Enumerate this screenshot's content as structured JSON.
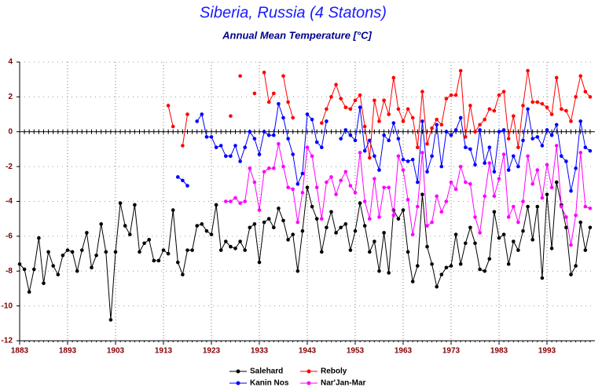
{
  "chart_data": {
    "type": "line",
    "title": "Siberia, Russia (4 Statons)",
    "subtitle": "Annual Mean Temperature [°C]",
    "x": [
      1883,
      1884,
      1885,
      1886,
      1887,
      1888,
      1889,
      1890,
      1891,
      1892,
      1893,
      1894,
      1895,
      1896,
      1897,
      1898,
      1899,
      1900,
      1901,
      1902,
      1903,
      1904,
      1905,
      1906,
      1907,
      1908,
      1909,
      1910,
      1911,
      1912,
      1913,
      1914,
      1915,
      1916,
      1917,
      1918,
      1919,
      1920,
      1921,
      1922,
      1923,
      1924,
      1925,
      1926,
      1927,
      1928,
      1929,
      1930,
      1931,
      1932,
      1933,
      1934,
      1935,
      1936,
      1937,
      1938,
      1939,
      1940,
      1941,
      1942,
      1943,
      1944,
      1945,
      1946,
      1947,
      1948,
      1949,
      1950,
      1951,
      1952,
      1953,
      1954,
      1955,
      1956,
      1957,
      1958,
      1959,
      1960,
      1961,
      1962,
      1963,
      1964,
      1965,
      1966,
      1967,
      1968,
      1969,
      1970,
      1971,
      1972,
      1973,
      1974,
      1975,
      1976,
      1977,
      1978,
      1979,
      1980,
      1981,
      1982,
      1983,
      1984,
      1985,
      1986,
      1987,
      1988,
      1989,
      1990,
      1991,
      1992,
      1993,
      1994,
      1995,
      1996,
      1997,
      1998,
      1999,
      2000,
      2001,
      2002
    ],
    "series": [
      {
        "name": "Salehard",
        "color": "#000000",
        "values": [
          -7.6,
          -7.9,
          -9.2,
          -7.9,
          -6.1,
          -8.7,
          -6.9,
          -7.7,
          -8.2,
          -7.1,
          -6.8,
          -6.9,
          -8.0,
          -6.8,
          -5.8,
          -7.8,
          -7.1,
          -5.3,
          -6.9,
          -10.8,
          -6.9,
          -4.1,
          -5.4,
          -5.9,
          -4.2,
          -6.9,
          -6.4,
          -6.2,
          -7.4,
          -7.4,
          -6.8,
          -7.0,
          -4.5,
          -7.5,
          -8.2,
          -6.8,
          -6.8,
          -5.4,
          -5.3,
          -5.7,
          -5.9,
          -4.2,
          -6.8,
          -6.3,
          -6.6,
          -6.7,
          -6.3,
          -6.8,
          -5.5,
          -5.3,
          -7.5,
          -5.2,
          -5.0,
          -5.5,
          -4.4,
          -5.1,
          -6.2,
          -5.9,
          -8.0,
          -5.7,
          -3.2,
          -4.3,
          -5.0,
          -6.9,
          -5.5,
          -4.6,
          -5.8,
          -5.5,
          -5.3,
          -6.8,
          -5.7,
          -4.1,
          -5.4,
          -6.9,
          -6.3,
          -8.0,
          -5.8,
          -8.1,
          -4.5,
          -5.0,
          -4.5,
          -6.9,
          -8.6,
          -7.7,
          -3.6,
          -6.6,
          -7.6,
          -8.9,
          -8.2,
          -7.8,
          -7.7,
          -5.9,
          -7.6,
          -6.4,
          -5.5,
          -6.4,
          -7.9,
          -8.0,
          -7.3,
          -4.6,
          -6.1,
          -5.9,
          -7.6,
          -6.3,
          -6.8,
          -5.7,
          -4.3,
          -6.2,
          -4.3,
          -8.4,
          -3.6,
          -6.7,
          -2.9,
          -4.2,
          -5.5,
          -8.2,
          -7.7,
          -5.2,
          -6.8,
          -5.5
        ]
      },
      {
        "name": "Kanin Nos",
        "color": "#0000ff",
        "values": [
          null,
          null,
          null,
          null,
          null,
          null,
          null,
          null,
          null,
          null,
          null,
          null,
          null,
          null,
          null,
          null,
          null,
          null,
          null,
          null,
          null,
          null,
          null,
          null,
          null,
          null,
          null,
          null,
          null,
          null,
          null,
          null,
          null,
          -2.6,
          -2.8,
          -3.1,
          null,
          0.6,
          1.0,
          -0.3,
          -0.3,
          -0.9,
          -0.8,
          -1.4,
          -1.4,
          -0.8,
          -1.7,
          -0.9,
          0.0,
          -0.4,
          -1.3,
          0.0,
          -0.2,
          -0.2,
          1.6,
          0.8,
          -0.4,
          -1.3,
          -3.0,
          -2.4,
          1.0,
          0.7,
          -0.6,
          -0.9,
          0.6,
          null,
          null,
          -0.4,
          0.1,
          -0.2,
          -0.5,
          1.4,
          -1.1,
          -0.5,
          -1.4,
          -2.2,
          -0.2,
          -0.5,
          0.5,
          -0.4,
          -1.6,
          -1.7,
          -1.6,
          -2.9,
          0.6,
          -2.3,
          -1.4,
          0.4,
          -2.0,
          0.0,
          -0.2,
          0.1,
          0.8,
          -0.9,
          -1.0,
          -1.9,
          0.1,
          -1.8,
          -0.9,
          -2.3,
          0.0,
          0.1,
          -2.2,
          -1.4,
          -2.0,
          -0.5,
          1.3,
          -0.4,
          -0.3,
          -0.8,
          0.1,
          -0.2,
          0.4,
          -1.4,
          -1.7,
          -3.4,
          -2.1,
          0.6,
          -0.9,
          -1.1
        ]
      },
      {
        "name": "Reboly",
        "color": "#ff0000",
        "values": [
          null,
          null,
          null,
          null,
          null,
          null,
          null,
          null,
          null,
          null,
          null,
          null,
          null,
          null,
          null,
          null,
          null,
          null,
          null,
          null,
          null,
          null,
          null,
          null,
          null,
          null,
          null,
          null,
          null,
          null,
          null,
          1.5,
          0.3,
          null,
          -0.8,
          1.0,
          null,
          null,
          null,
          null,
          null,
          null,
          null,
          null,
          0.9,
          null,
          3.2,
          null,
          null,
          2.2,
          null,
          3.4,
          1.7,
          2.2,
          null,
          3.2,
          1.7,
          0.8,
          null,
          null,
          null,
          null,
          null,
          0.5,
          1.3,
          2.0,
          2.7,
          1.9,
          1.4,
          1.3,
          1.8,
          2.1,
          0.3,
          -1.5,
          1.8,
          0.6,
          1.8,
          1.0,
          3.1,
          1.3,
          0.6,
          1.3,
          0.8,
          -0.9,
          2.3,
          -0.7,
          0.2,
          0.7,
          0.4,
          1.9,
          2.1,
          2.1,
          3.5,
          -0.3,
          1.5,
          0.0,
          0.4,
          0.7,
          1.3,
          1.2,
          2.1,
          2.3,
          -0.4,
          0.9,
          -0.9,
          1.5,
          3.5,
          1.7,
          1.7,
          1.6,
          1.4,
          1.0,
          3.1,
          1.3,
          1.2,
          0.6,
          2.0,
          3.2,
          2.3,
          2.0
        ]
      },
      {
        "name": "Nar'Jan-Mar",
        "color": "#ff00ff",
        "values": [
          null,
          null,
          null,
          null,
          null,
          null,
          null,
          null,
          null,
          null,
          null,
          null,
          null,
          null,
          null,
          null,
          null,
          null,
          null,
          null,
          null,
          null,
          null,
          null,
          null,
          null,
          null,
          null,
          null,
          null,
          null,
          null,
          null,
          null,
          null,
          null,
          null,
          null,
          null,
          null,
          null,
          null,
          null,
          -4.0,
          -4.0,
          -3.8,
          -4.1,
          -4.0,
          -2.1,
          -2.9,
          -4.5,
          -2.3,
          -2.1,
          -2.1,
          -0.7,
          -2.0,
          -3.2,
          -3.3,
          -5.2,
          -3.5,
          -0.9,
          -1.4,
          -3.2,
          -5.0,
          -2.9,
          -2.6,
          -3.6,
          -2.8,
          -2.3,
          -3.1,
          -3.5,
          -1.2,
          -4.0,
          -5.0,
          -2.7,
          -4.9,
          -3.2,
          -3.2,
          -4.8,
          -1.4,
          -2.2,
          -3.9,
          -5.9,
          -4.3,
          -1.2,
          -5.4,
          -5.2,
          -3.7,
          -4.6,
          -4.0,
          -2.9,
          -3.3,
          -2.0,
          -2.9,
          -3.0,
          -4.9,
          -5.8,
          -3.7,
          -1.8,
          -3.7,
          -2.7,
          -1.3,
          -4.9,
          -4.3,
          -5.2,
          -4.0,
          -1.4,
          -3.0,
          -2.2,
          -3.8,
          -1.9,
          -3.2,
          -0.8,
          -4.3,
          -4.9,
          -6.5,
          -4.8,
          -1.2,
          -4.3,
          -4.4
        ]
      }
    ],
    "xlim": [
      1883,
      2003
    ],
    "xticks": [
      1883,
      1893,
      1903,
      1913,
      1923,
      1933,
      1943,
      1953,
      1963,
      1973,
      1983,
      1993
    ],
    "ylim": [
      -12,
      4
    ],
    "yticks": [
      -12,
      -10,
      -8,
      -6,
      -4,
      -2,
      0,
      2,
      4
    ],
    "grid": true,
    "legend": "bottom"
  }
}
